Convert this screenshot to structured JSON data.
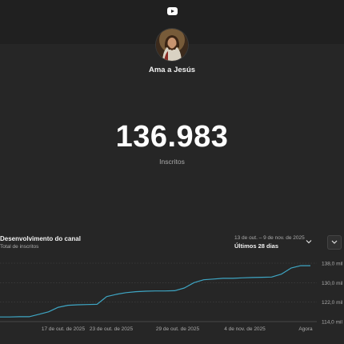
{
  "channel": {
    "name": "Ama a Jesús",
    "subscriber_count": "136.983",
    "subscriber_label": "Inscritos"
  },
  "panel": {
    "title": "Desenvolvimento do canal",
    "subtitle": "Total de inscritos",
    "date_range": "13 de out. – 9 de nov. de 2025",
    "range_label": "Últimos 28 dias"
  },
  "colors": {
    "background": "#262626",
    "topbar": "#202020",
    "line": "#3ea6c4",
    "grid": "#444444"
  },
  "icons": [
    "youtube-icon",
    "chevron-down-icon"
  ],
  "chart_data": {
    "type": "line",
    "x_tick_labels": [
      "17 de out. de 2025",
      "23 de out. de 2025",
      "29 de out. de 2025",
      "4 de nov. de 2025",
      "Agora"
    ],
    "y_tick_labels": [
      "138,0 mil",
      "130,0 mil",
      "122,0 mil",
      "114,0 mil"
    ],
    "ylim": [
      114000,
      138000
    ],
    "series": [
      {
        "values": [
          115900,
          115900,
          116000,
          116000,
          117000,
          118000,
          119900,
          120700,
          120900,
          121000,
          121100,
          124300,
          125200,
          125900,
          126300,
          126500,
          126600,
          126600,
          126700,
          127800,
          130000,
          131200,
          131500,
          131800,
          131800,
          132000,
          132100,
          132200,
          132300,
          133500,
          136000,
          136983,
          136983
        ]
      }
    ]
  }
}
